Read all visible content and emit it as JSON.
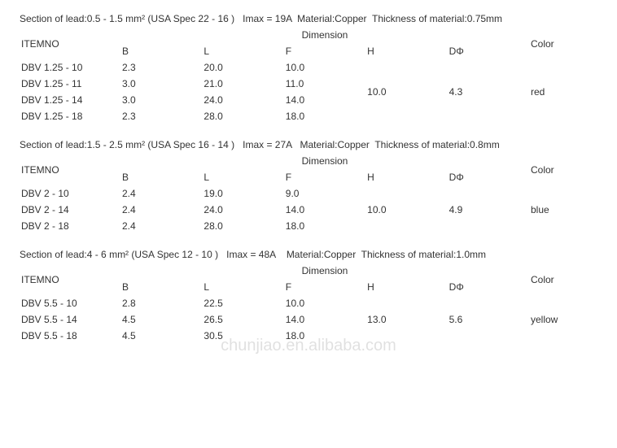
{
  "watermark": "chunjiao.en.alibaba.com",
  "labels": {
    "itemno": "ITEMNO",
    "dimension": "Dimension",
    "B": "B",
    "L": "L",
    "F": "F",
    "H": "H",
    "D": "DΦ",
    "color": "Color"
  },
  "sections": [
    {
      "spec": "Section of lead:0.5 - 1.5 mm² (USA Spec 22 - 16 )   Imax = 19A  Material:Copper  Thickness of material:0.75mm",
      "H": "10.0",
      "D": "4.3",
      "color": "red",
      "rows": [
        {
          "item": "DBV 1.25 - 10",
          "B": "2.3",
          "L": "20.0",
          "F": "10.0"
        },
        {
          "item": "DBV 1.25 - 11",
          "B": "3.0",
          "L": "21.0",
          "F": "11.0"
        },
        {
          "item": "DBV 1.25 - 14",
          "B": "3.0",
          "L": "24.0",
          "F": "14.0"
        },
        {
          "item": "DBV 1.25 - 18",
          "B": "2.3",
          "L": "28.0",
          "F": "18.0"
        }
      ]
    },
    {
      "spec": "Section of lead:1.5 - 2.5 mm² (USA Spec 16 - 14 )   Imax = 27A   Material:Copper  Thickness of material:0.8mm",
      "H": "10.0",
      "D": "4.9",
      "color": "blue",
      "rows": [
        {
          "item": "DBV 2 - 10",
          "B": "2.4",
          "L": "19.0",
          "F": "9.0"
        },
        {
          "item": "DBV 2 - 14",
          "B": "2.4",
          "L": "24.0",
          "F": "14.0"
        },
        {
          "item": "DBV 2 - 18",
          "B": "2.4",
          "L": "28.0",
          "F": "18.0"
        }
      ]
    },
    {
      "spec": "Section of lead:4 - 6 mm² (USA Spec 12 - 10 )   Imax = 48A    Material:Copper  Thickness of material:1.0mm",
      "H": "13.0",
      "D": "5.6",
      "color": "yellow",
      "rows": [
        {
          "item": "DBV 5.5 - 10",
          "B": "2.8",
          "L": "22.5",
          "F": "10.0"
        },
        {
          "item": "DBV 5.5 - 14",
          "B": "4.5",
          "L": "26.5",
          "F": "14.0"
        },
        {
          "item": "DBV 5.5 - 18",
          "B": "4.5",
          "L": "30.5",
          "F": "18.0"
        }
      ]
    }
  ]
}
